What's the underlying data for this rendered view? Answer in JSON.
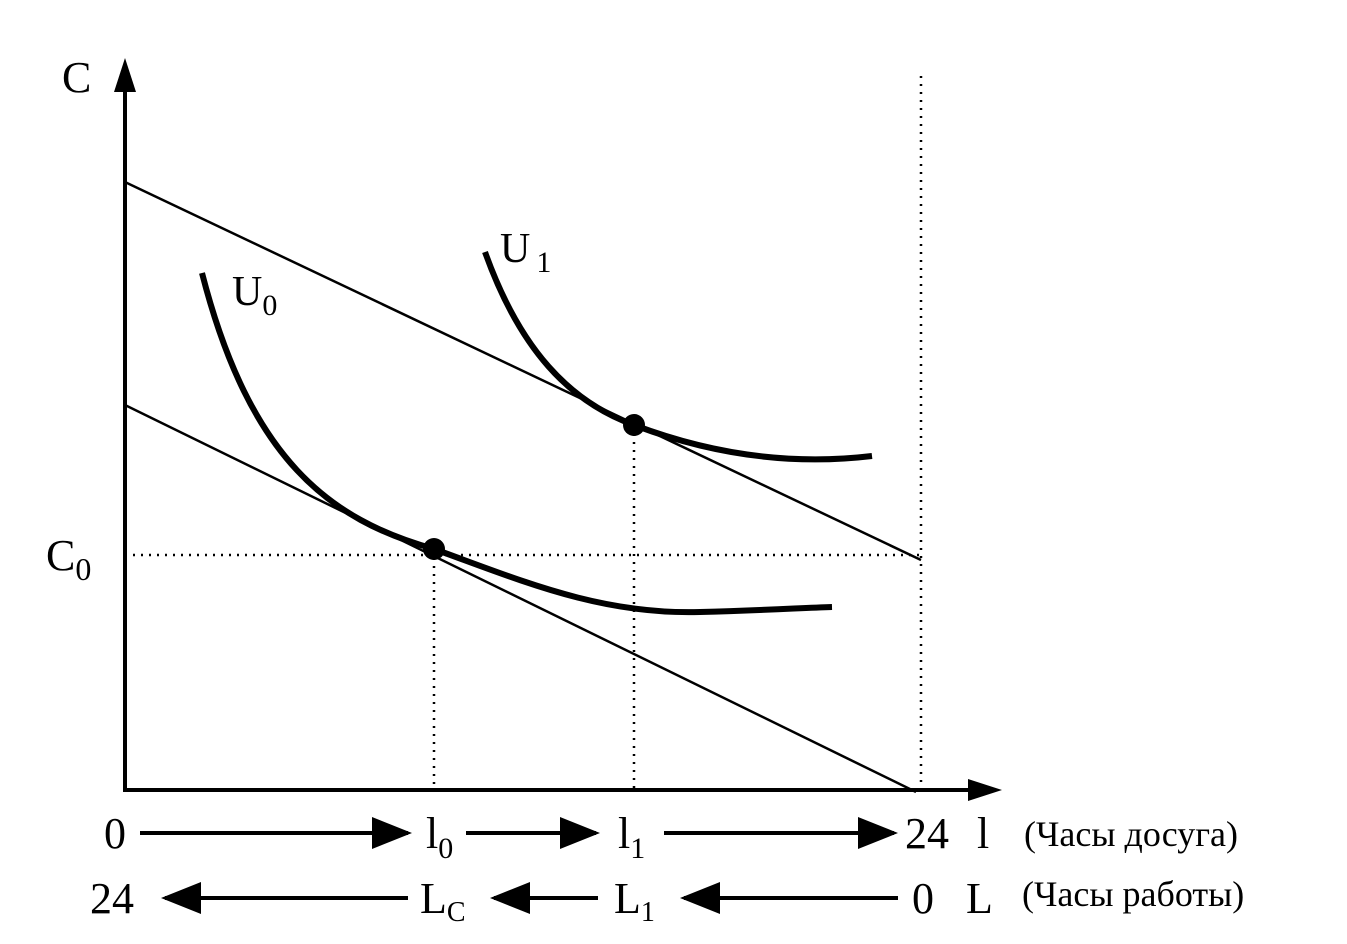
{
  "axes": {
    "y_label": "C",
    "c0_label": "C",
    "c0_sub": "0"
  },
  "curves": {
    "u0_label": "U",
    "u0_sub": "0",
    "u1_label": "U",
    "u1_sub": "1"
  },
  "leisure_row": {
    "start": "0",
    "l0": "l",
    "l0_sub": "0",
    "l1": "l",
    "l1_sub": "1",
    "end": "24",
    "var": "l",
    "caption": "(Часы досуга)"
  },
  "work_row": {
    "start": "24",
    "lc": "L",
    "lc_sub": "C",
    "l1": "L",
    "l1_sub": "1",
    "end": "0",
    "var": "L",
    "caption": "(Часы работы)"
  },
  "colors": {
    "ink": "#000000",
    "background": "#ffffff"
  }
}
